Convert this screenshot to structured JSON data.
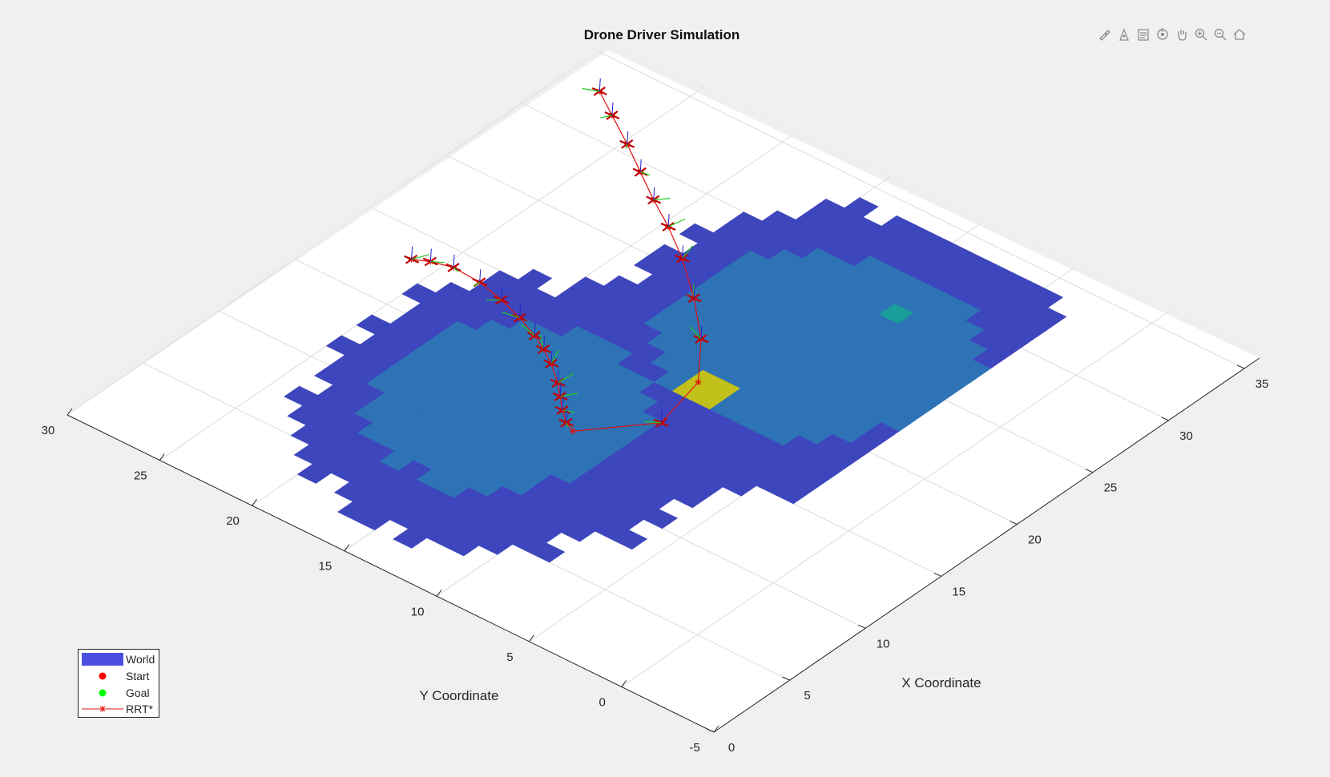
{
  "colors": {
    "background": "#f0f0f0",
    "axes": "#ffffff",
    "grid": "#dcdcdc",
    "axis_line": "#262626",
    "text": "#262626",
    "world_low": "#3d46bc",
    "world_mid": "#2e73b6",
    "world_teal": "#1a9e9a",
    "world_peak": "#c2c01a",
    "path": "#e01010",
    "start": "#ff0000",
    "goal": "#00ff00",
    "drone_arm": "#c00000",
    "heading": "#22cc22"
  },
  "toolbar": {
    "icons": [
      "brush-icon",
      "data-tip-icon",
      "legend-icon",
      "rotate-3d-icon",
      "pan-icon",
      "zoom-in-icon",
      "zoom-out-icon",
      "home-icon"
    ]
  },
  "chart_data": {
    "type": "surface3d",
    "title": "Drone Driver Simulation",
    "xlabel": "X Coordinate",
    "ylabel": "Y Coordinate",
    "x_ticks": [
      "0",
      "5",
      "10",
      "15",
      "20",
      "25",
      "30",
      "35"
    ],
    "y_ticks": [
      "-5",
      "0",
      "5",
      "10",
      "15",
      "20",
      "25",
      "30"
    ],
    "grid": true,
    "legend_position": "bottom-left",
    "legend": [
      {
        "label": "World",
        "symbol": "patch"
      },
      {
        "label": "Start",
        "symbol": "dot-red"
      },
      {
        "label": "Goal",
        "symbol": "dot-green"
      },
      {
        "label": "RRT*",
        "symbol": "line-star-red"
      }
    ],
    "path_xy": [
      [
        18.2,
        26.3
      ],
      [
        18.6,
        25.6
      ],
      [
        18.9,
        24.6
      ],
      [
        18.8,
        23.1
      ],
      [
        18.4,
        21.6
      ],
      [
        17.9,
        20.2
      ],
      [
        17.3,
        18.9
      ],
      [
        16.8,
        18.0
      ],
      [
        16.2,
        17.1
      ],
      [
        15.3,
        16.0
      ],
      [
        14.6,
        15.3
      ],
      [
        13.9,
        14.6
      ],
      [
        13.3,
        13.9
      ],
      [
        13.0,
        13.3
      ],
      [
        15.9,
        10.9
      ],
      [
        19.2,
        11.6
      ],
      [
        21.7,
        13.5
      ],
      [
        23.8,
        15.6
      ],
      [
        25.7,
        17.8
      ],
      [
        27.1,
        19.7
      ],
      [
        28.2,
        21.4
      ],
      [
        29.4,
        23.1
      ],
      [
        30.6,
        24.8
      ],
      [
        31.8,
        26.6
      ],
      [
        32.8,
        28.1
      ]
    ]
  }
}
